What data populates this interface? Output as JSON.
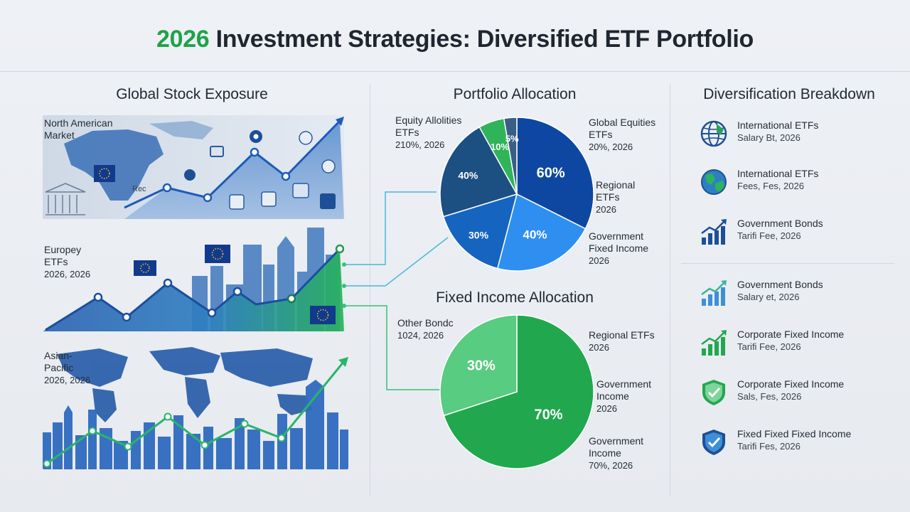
{
  "header": {
    "title_year": "2026",
    "title_rest": " Investment Strategies: Diversified ETF Portfolio"
  },
  "sections": {
    "global_stock": "Global Stock Exposure",
    "portfolio_allocation": "Portfolio Allocation",
    "diversification": "Diversification Breakdown",
    "fixed_income": "Fixed Income Allocation"
  },
  "regions": {
    "north_america": {
      "line1": "North American",
      "line2": "Market",
      "tag": "Rec"
    },
    "europe": {
      "line1": "Europey",
      "line2": "ETFs",
      "line3": "2026, 2026"
    },
    "asia": {
      "line1": "Asian-",
      "line2": "Pacific",
      "line3": "2026, 2026"
    }
  },
  "portfolio_labels": {
    "left": {
      "l1": "Equity Allolities",
      "l2": "ETFs",
      "l3": "210%, 2026"
    },
    "right1": {
      "l1": "Global Equities",
      "l2": "ETFs",
      "l3": "20%, 2026"
    },
    "right2": {
      "l1": "Regional",
      "l2": "ETFs",
      "l3": "2026"
    },
    "right3": {
      "l1": "Government",
      "l2": "Fixed Income",
      "l3": "2026"
    }
  },
  "fixed_labels": {
    "left": {
      "l1": "Other Bondc",
      "l2": "1024, 2026"
    },
    "right1": {
      "l1": "Regional ETFs",
      "l2": "2026"
    },
    "right2": {
      "l1": "Government",
      "l2": "Income",
      "l3": "2026"
    },
    "right3": {
      "l1": "Government",
      "l2": "Income",
      "l3": "70%, 2026"
    }
  },
  "chart_data": [
    {
      "type": "pie",
      "title": "Portfolio Allocation",
      "slices": [
        {
          "label": "60%",
          "value": 60,
          "color": "#0d47a1"
        },
        {
          "label": "40%",
          "value": 40,
          "color": "#2e8ff0"
        },
        {
          "label": "30%",
          "value": 30,
          "color": "#1565c0"
        },
        {
          "label": "40%",
          "value": 40,
          "color": "#1c4f82"
        },
        {
          "label": "10%",
          "value": 10,
          "color": "#2fb45a"
        },
        {
          "label": "5%",
          "value": 5,
          "color": "#3a5f86"
        }
      ]
    },
    {
      "type": "pie",
      "title": "Fixed Income Allocation",
      "slices": [
        {
          "label": "70%",
          "value": 70,
          "color": "#21a84f"
        },
        {
          "label": "30%",
          "value": 30,
          "color": "#58cc80"
        }
      ]
    }
  ],
  "legend": [
    {
      "icon": "globe-icon",
      "title": "International ETFs",
      "sub": "Salary Bt, 2026"
    },
    {
      "icon": "globe-green-icon",
      "title": "International ETFs",
      "sub": "Fees, Fes, 2026"
    },
    {
      "icon": "bar-growth-icon",
      "title": "Government Bonds",
      "sub": "Tarifi Fee, 2026"
    },
    {
      "icon": "bar-growth-light-icon",
      "title": "Government Bonds",
      "sub": "Salary et, 2026"
    },
    {
      "icon": "bar-growth-green-icon",
      "title": "Corporate Fixed Income",
      "sub": "Tarifi Fee, 2026"
    },
    {
      "icon": "shield-green-icon",
      "title": "Corporate Fixed Income",
      "sub": "Sals, Fes, 2026"
    },
    {
      "icon": "shield-blue-icon",
      "title": "Fixed Fixed Fixed Income",
      "sub": "Tarifi Fes, 2026"
    }
  ],
  "colors": {
    "green": "#1fa24a",
    "blue_dark": "#0d47a1",
    "blue": "#2e8ff0",
    "text": "#1f2630"
  }
}
